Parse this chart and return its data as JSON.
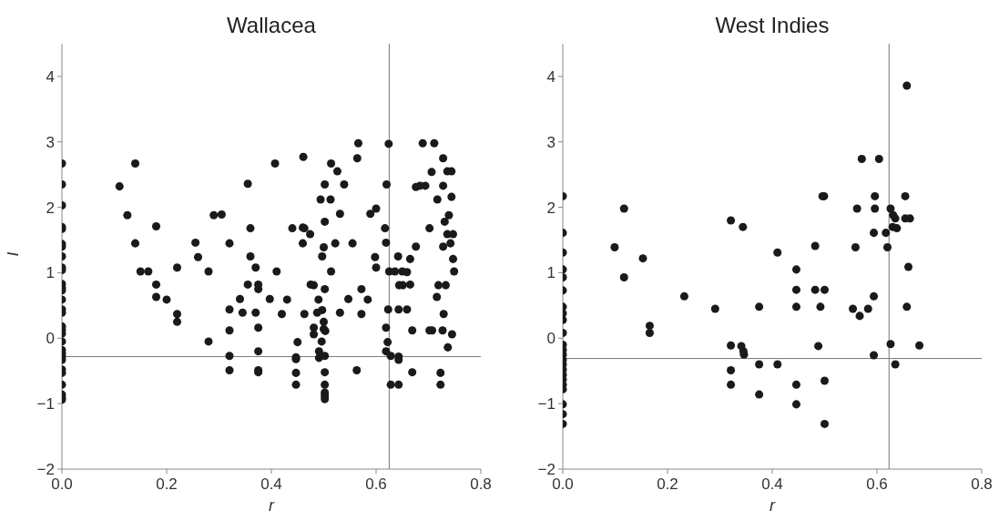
{
  "chart_data": [
    {
      "type": "scatter",
      "title": "Wallacea",
      "xlabel": "r",
      "ylabel": "I",
      "marker": "circle",
      "grid": false,
      "xlim": [
        0,
        0.8
      ],
      "xticks": [
        {
          "value": 0,
          "label": "0.0"
        },
        {
          "value": 0.2,
          "label": "0.2"
        },
        {
          "value": 0.4,
          "label": "0.4"
        },
        {
          "value": 0.6,
          "label": "0.6"
        },
        {
          "value": 0.8,
          "label": "0.8"
        }
      ],
      "ylim": [
        -2,
        4.5
      ],
      "yticks": [
        -2,
        -1,
        0,
        1,
        2,
        3,
        4
      ],
      "ref_lines": [
        {
          "axis": "y",
          "value": -0.28,
          "color": "#777777"
        },
        {
          "axis": "x",
          "value": 0.625,
          "color": "#777777"
        }
      ],
      "series": [
        {
          "color": "#1a1a1a",
          "x": [
            0,
            0,
            0,
            0,
            0,
            0,
            0,
            0,
            0,
            0,
            0,
            0,
            0,
            0,
            0,
            0,
            0,
            0,
            0,
            0,
            0,
            0,
            0,
            0,
            0,
            0,
            0,
            0,
            0,
            0,
            0.11,
            0.14,
            0.125,
            0.14,
            0.18,
            0.15,
            0.165,
            0.18,
            0.18,
            0.2,
            0.22,
            0.22,
            0.22,
            0.255,
            0.26,
            0.28,
            0.28,
            0.29,
            0.305,
            0.32,
            0.32,
            0.32,
            0.32,
            0.32,
            0.34,
            0.345,
            0.355,
            0.36,
            0.36,
            0.355,
            0.37,
            0.375,
            0.375,
            0.37,
            0.375,
            0.375,
            0.375,
            0.375,
            0.397,
            0.407,
            0.41,
            0.42,
            0.43,
            0.44,
            0.46,
            0.463,
            0.474,
            0.46,
            0.461,
            0.45,
            0.447,
            0.447,
            0.447,
            0.447,
            0.463,
            0.475,
            0.481,
            0.49,
            0.4875,
            0.497,
            0.502,
            0.497,
            0.5,
            0.502,
            0.494,
            0.513,
            0.502,
            0.514,
            0.526,
            0.539,
            0.531,
            0.522,
            0.514,
            0.531,
            0.547,
            0.555,
            0.566,
            0.564,
            0.572,
            0.572,
            0.584,
            0.589,
            0.6,
            0.598,
            0.6,
            0.481,
            0.481,
            0.5,
            0.5,
            0.503,
            0.496,
            0.491,
            0.491,
            0.502,
            0.502,
            0.502,
            0.502,
            0.502,
            0.502,
            0.563,
            0.617,
            0.619,
            0.62,
            0.624,
            0.625,
            0.623,
            0.619,
            0.619,
            0.622,
            0.628,
            0.628,
            0.636,
            0.642,
            0.65,
            0.659,
            0.644,
            0.651,
            0.665,
            0.665,
            0.643,
            0.659,
            0.643,
            0.643,
            0.643,
            0.669,
            0.669,
            0.676,
            0.676,
            0.684,
            0.694,
            0.689,
            0.711,
            0.702,
            0.706,
            0.717,
            0.728,
            0.728,
            0.736,
            0.744,
            0.744,
            0.739,
            0.731,
            0.736,
            0.747,
            0.742,
            0.728,
            0.747,
            0.749,
            0.719,
            0.733,
            0.716,
            0.729,
            0.702,
            0.707,
            0.727,
            0.745,
            0.737,
            0.723,
            0.723
          ],
          "values": [
            2.67,
            2.35,
            2.03,
            1.7,
            1.67,
            1.44,
            1.4,
            1.25,
            1.08,
            1.04,
            0.83,
            0.77,
            0.73,
            0.59,
            0.44,
            0.39,
            0.18,
            0.13,
            0.07,
            -0.05,
            -0.18,
            -0.23,
            -0.28,
            -0.33,
            -0.48,
            -0.53,
            -0.71,
            -0.86,
            -0.91,
            -0.94,
            2.32,
            2.67,
            1.88,
            1.45,
            1.71,
            1.02,
            1.02,
            0.82,
            0.63,
            0.59,
            1.08,
            0.37,
            0.25,
            1.46,
            1.24,
            1.02,
            -0.05,
            1.88,
            1.89,
            1.45,
            0.44,
            0.12,
            -0.27,
            -0.49,
            0.6,
            0.39,
            2.36,
            1.68,
            1.25,
            0.82,
            1.08,
            0.82,
            0.75,
            0.39,
            0.16,
            -0.2,
            -0.49,
            -0.52,
            0.6,
            2.67,
            1.02,
            0.37,
            0.59,
            1.68,
            1.69,
            1.68,
            1.59,
            1.45,
            2.77,
            -0.06,
            -0.29,
            -0.32,
            -0.53,
            -0.71,
            0.37,
            0.82,
            0.81,
            0.59,
            0.39,
            0.43,
            0.75,
            1.25,
            1.39,
            1.78,
            2.12,
            2.12,
            2.35,
            2.67,
            2.55,
            2.35,
            1.9,
            1.45,
            1.02,
            0.39,
            0.6,
            1.45,
            2.98,
            2.75,
            0.75,
            0.37,
            0.59,
            1.9,
            1.98,
            1.24,
            1.08,
            0.16,
            0.06,
            0.25,
            0.14,
            0.11,
            -0.05,
            -0.2,
            -0.3,
            -0.27,
            -0.52,
            -0.71,
            -0.83,
            -0.88,
            -0.93,
            -0.49,
            1.68,
            1.46,
            2.35,
            2.97,
            1.02,
            0.44,
            0.16,
            -0.2,
            -0.06,
            -0.27,
            -0.71,
            1.02,
            1.25,
            1.02,
            1.01,
            0.81,
            0.81,
            0.82,
            1.21,
            0.44,
            0.44,
            -0.28,
            -0.33,
            -0.71,
            0.12,
            -0.52,
            1.4,
            2.31,
            2.33,
            2.33,
            2.98,
            2.98,
            1.68,
            2.54,
            2.12,
            2.75,
            2.33,
            2.55,
            2.55,
            2.16,
            1.88,
            1.78,
            1.59,
            1.59,
            1.45,
            1.4,
            1.21,
            1.02,
            0.81,
            0.81,
            0.63,
            0.37,
            0.12,
            0.12,
            0.12,
            0.06,
            -0.14,
            -0.53,
            -0.71
          ]
        }
      ]
    },
    {
      "type": "scatter",
      "title": "West Indies",
      "xlabel": "r",
      "marker": "circle",
      "grid": false,
      "xlim": [
        0,
        0.8
      ],
      "xticks": [
        {
          "value": 0,
          "label": "0.0"
        },
        {
          "value": 0.2,
          "label": "0.2"
        },
        {
          "value": 0.4,
          "label": "0.4"
        },
        {
          "value": 0.6,
          "label": "0.6"
        },
        {
          "value": 0.8,
          "label": "0.8"
        }
      ],
      "ylim": [
        -2,
        4.5
      ],
      "yticks": [
        -2,
        -1,
        0,
        1,
        2,
        3,
        4
      ],
      "ref_lines": [
        {
          "axis": "y",
          "value": -0.31,
          "color": "#777777"
        },
        {
          "axis": "x",
          "value": 0.623,
          "color": "#777777"
        }
      ],
      "series": [
        {
          "color": "#1a1a1a",
          "x": [
            0,
            0,
            0,
            0,
            0,
            0,
            0,
            0,
            0,
            0,
            0,
            0,
            0,
            0,
            0,
            0,
            0,
            0,
            0,
            0,
            0,
            0,
            0,
            0.099,
            0.117,
            0.117,
            0.153,
            0.166,
            0.166,
            0.232,
            0.291,
            0.321,
            0.344,
            0.321,
            0.321,
            0.321,
            0.341,
            0.345,
            0.346,
            0.375,
            0.375,
            0.375,
            0.41,
            0.41,
            0.446,
            0.446,
            0.446,
            0.446,
            0.446,
            0.482,
            0.482,
            0.488,
            0.492,
            0.496,
            0.499,
            0.5,
            0.5,
            0.5,
            0.554,
            0.559,
            0.562,
            0.567,
            0.571,
            0.583,
            0.594,
            0.594,
            0.596,
            0.596,
            0.594,
            0.604,
            0.617,
            0.62,
            0.626,
            0.631,
            0.635,
            0.63,
            0.638,
            0.626,
            0.635,
            0.654,
            0.654,
            0.663,
            0.657,
            0.66,
            0.657,
            0.681
          ],
          "values": [
            2.17,
            1.61,
            1.31,
            1.05,
            0.93,
            0.73,
            0.48,
            0.38,
            0.28,
            0.08,
            -0.1,
            -0.18,
            -0.25,
            -0.33,
            -0.4,
            -0.48,
            -0.56,
            -0.63,
            -0.71,
            -0.78,
            -1.01,
            -1.16,
            -1.31,
            1.39,
            1.98,
            0.93,
            1.22,
            0.19,
            0.08,
            0.64,
            0.45,
            1.8,
            1.7,
            -0.11,
            -0.49,
            -0.71,
            -0.12,
            -0.2,
            -0.25,
            0.48,
            -0.4,
            -0.86,
            -0.4,
            1.31,
            1.05,
            0.74,
            0.48,
            -0.71,
            -1.01,
            1.41,
            0.74,
            -0.12,
            0.48,
            2.17,
            2.17,
            0.74,
            -0.65,
            -1.31,
            0.45,
            1.39,
            1.98,
            0.34,
            2.74,
            0.45,
            0.64,
            1.61,
            2.17,
            1.98,
            -0.26,
            2.74,
            1.61,
            1.39,
            1.98,
            1.88,
            1.83,
            1.7,
            1.68,
            -0.09,
            -0.4,
            2.17,
            1.83,
            1.83,
            3.86,
            1.09,
            0.48,
            -0.11
          ]
        }
      ]
    }
  ]
}
